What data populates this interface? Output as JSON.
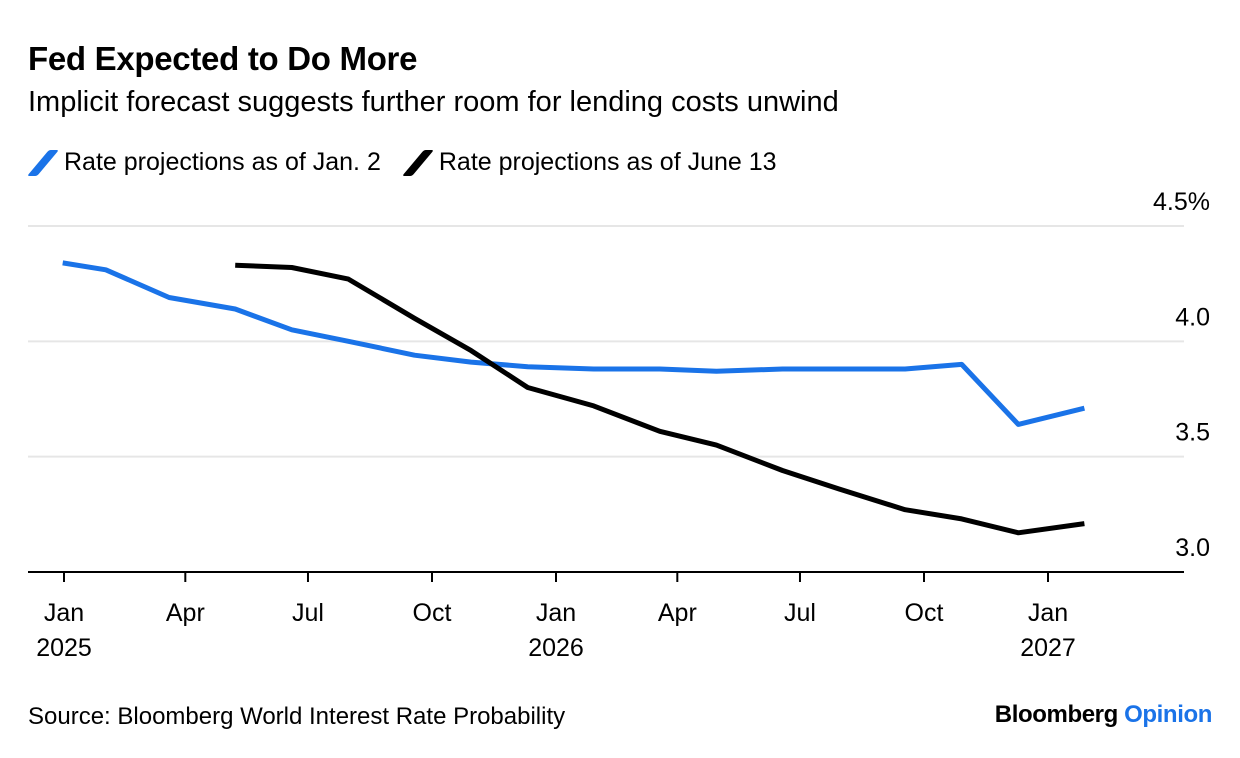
{
  "title": "Fed Expected to Do More",
  "subtitle": "Implicit forecast suggests further room for lending costs unwind",
  "source": "Source: Bloomberg World Interest Rate Probability",
  "brand": {
    "name": "Bloomberg",
    "suffix": "Opinion"
  },
  "colors": {
    "series_jan": "#1a73e8",
    "series_june": "#000000",
    "grid": "#e6e6e6",
    "axis": "#000000"
  },
  "chart_data": {
    "type": "line",
    "title": "Fed Expected to Do More",
    "subtitle": "Implicit forecast suggests further room for lending costs unwind",
    "xlabel": "",
    "ylabel": "",
    "ylim": [
      2.9,
      4.5
    ],
    "xlim": [
      "2024-12-01",
      "2027-03-15"
    ],
    "grid": true,
    "legend_position": "top-left",
    "y_ticks": [
      {
        "value": 4.5,
        "label": "4.5%"
      },
      {
        "value": 4.0,
        "label": "4.0"
      },
      {
        "value": 3.5,
        "label": "3.5"
      },
      {
        "value": 3.0,
        "label": "3.0"
      }
    ],
    "x_ticks": [
      {
        "date": "2025-01-01",
        "label": "Jan",
        "year": "2025"
      },
      {
        "date": "2025-04-01",
        "label": "Apr",
        "year": ""
      },
      {
        "date": "2025-07-01",
        "label": "Jul",
        "year": ""
      },
      {
        "date": "2025-10-01",
        "label": "Oct",
        "year": ""
      },
      {
        "date": "2026-01-01",
        "label": "Jan",
        "year": "2026"
      },
      {
        "date": "2026-04-01",
        "label": "Apr",
        "year": ""
      },
      {
        "date": "2026-07-01",
        "label": "Jul",
        "year": ""
      },
      {
        "date": "2026-10-01",
        "label": "Oct",
        "year": ""
      },
      {
        "date": "2027-01-01",
        "label": "Jan",
        "year": "2027"
      }
    ],
    "series": [
      {
        "name": "Rate projections as of Jan. 2",
        "color": "#1a73e8",
        "points": [
          {
            "x": "2024-12-31",
            "y": 4.34
          },
          {
            "x": "2025-02-01",
            "y": 4.31
          },
          {
            "x": "2025-03-20",
            "y": 4.19
          },
          {
            "x": "2025-05-08",
            "y": 4.14
          },
          {
            "x": "2025-06-19",
            "y": 4.05
          },
          {
            "x": "2025-07-31",
            "y": 4.0
          },
          {
            "x": "2025-09-18",
            "y": 3.94
          },
          {
            "x": "2025-10-30",
            "y": 3.91
          },
          {
            "x": "2025-12-11",
            "y": 3.89
          },
          {
            "x": "2026-01-29",
            "y": 3.88
          },
          {
            "x": "2026-03-19",
            "y": 3.88
          },
          {
            "x": "2026-04-30",
            "y": 3.87
          },
          {
            "x": "2026-06-18",
            "y": 3.88
          },
          {
            "x": "2026-07-30",
            "y": 3.88
          },
          {
            "x": "2026-09-17",
            "y": 3.88
          },
          {
            "x": "2026-10-29",
            "y": 3.9
          },
          {
            "x": "2026-12-10",
            "y": 3.64
          },
          {
            "x": "2027-01-28",
            "y": 3.71
          }
        ]
      },
      {
        "name": "Rate projections as of June 13",
        "color": "#000000",
        "points": [
          {
            "x": "2025-05-08",
            "y": 4.33
          },
          {
            "x": "2025-06-19",
            "y": 4.32
          },
          {
            "x": "2025-07-31",
            "y": 4.27
          },
          {
            "x": "2025-09-18",
            "y": 4.1
          },
          {
            "x": "2025-10-30",
            "y": 3.96
          },
          {
            "x": "2025-12-11",
            "y": 3.8
          },
          {
            "x": "2026-01-29",
            "y": 3.72
          },
          {
            "x": "2026-03-19",
            "y": 3.61
          },
          {
            "x": "2026-04-30",
            "y": 3.55
          },
          {
            "x": "2026-06-18",
            "y": 3.44
          },
          {
            "x": "2026-07-30",
            "y": 3.36
          },
          {
            "x": "2026-09-17",
            "y": 3.27
          },
          {
            "x": "2026-10-29",
            "y": 3.23
          },
          {
            "x": "2026-12-10",
            "y": 3.17
          },
          {
            "x": "2027-01-28",
            "y": 3.21
          }
        ]
      }
    ]
  }
}
